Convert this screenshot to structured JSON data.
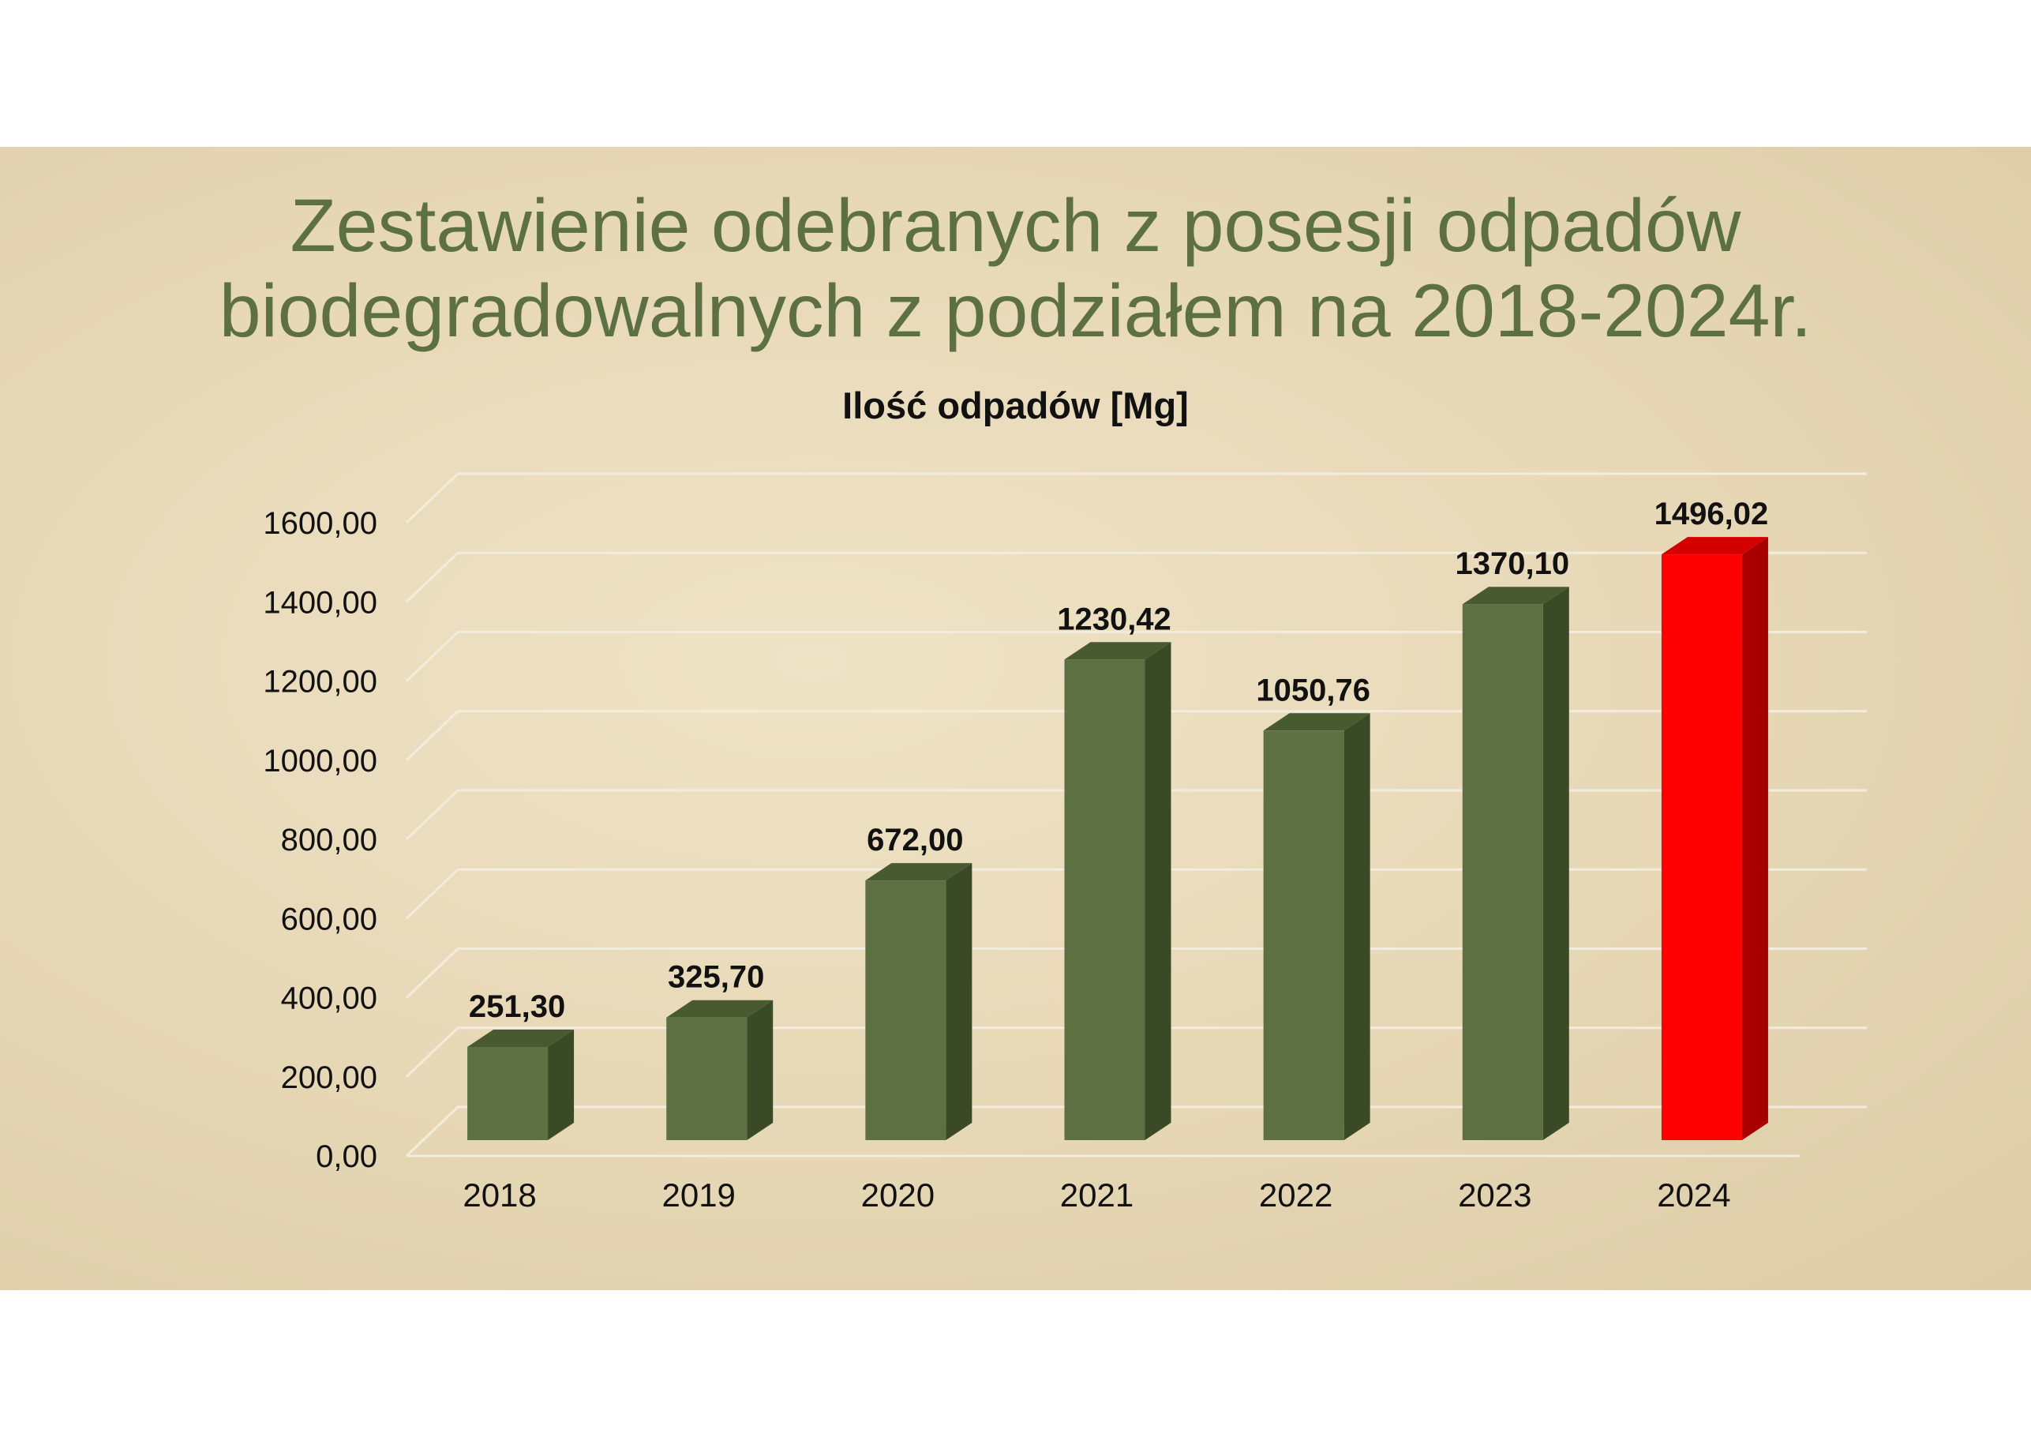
{
  "slide": {
    "title_line1": "Zestawienie odebranych z posesji odpadów",
    "title_line2": "biodegradowalnych z podziałem na 2018-2024r."
  },
  "colors": {
    "background": "#e8dab9",
    "title": "#5d7042",
    "bar": "#5d7042",
    "bar_side": "#3a4a26",
    "bar_top": "#485b30",
    "highlight": "#ff0000",
    "highlight_side": "#a80000",
    "highlight_top": "#d40000",
    "grid": "#f3ecdd"
  },
  "chart_data": {
    "type": "bar",
    "title": "Ilość odpadów [Mg]",
    "categories": [
      "2018",
      "2019",
      "2020",
      "2021",
      "2022",
      "2023",
      "2024"
    ],
    "values": [
      251.3,
      325.7,
      672.0,
      1230.42,
      1050.76,
      1370.1,
      1496.02
    ],
    "value_labels": [
      "251,30",
      "325,70",
      "672,00",
      "1230,42",
      "1050,76",
      "1370,10",
      "1496,02"
    ],
    "highlight_category": "2024",
    "ylim": [
      0,
      1600
    ],
    "yticks": [
      0,
      200,
      400,
      600,
      800,
      1000,
      1200,
      1400,
      1600
    ],
    "ytick_labels": [
      "0,00",
      "200,00",
      "400,00",
      "600,00",
      "800,00",
      "1000,00",
      "1200,00",
      "1400,00",
      "1600,00"
    ],
    "xlabel": "",
    "ylabel": "",
    "grid": true,
    "legend": "none",
    "style": "3d-column"
  }
}
